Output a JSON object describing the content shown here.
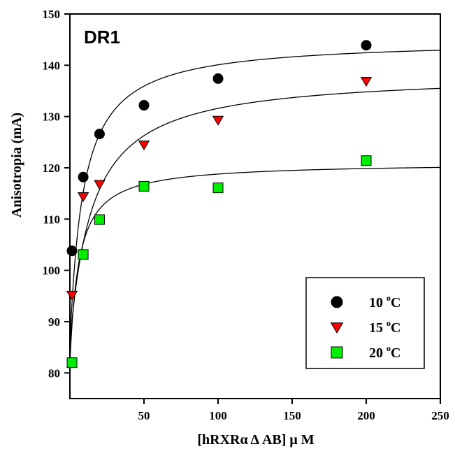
{
  "chart_data": {
    "type": "scatter",
    "panel_label": "DR1",
    "xlabel": "[hRXRα Δ AB] μ M",
    "ylabel": "Anisotropia (mA)",
    "xlim": [
      0,
      250
    ],
    "ylim": [
      75,
      150
    ],
    "x_ticks": [
      50,
      100,
      150,
      200,
      250
    ],
    "y_ticks": [
      80,
      90,
      100,
      110,
      120,
      130,
      140,
      150
    ],
    "legend_position": "bottom-right",
    "grid": false,
    "series": [
      {
        "name": "10 ºC",
        "name_base": "10 ",
        "name_sup": "o",
        "name_unit": "C",
        "marker": "circle",
        "color": "#000000",
        "x": [
          0,
          9,
          20,
          50,
          100,
          200
        ],
        "y": [
          103.8,
          118.2,
          126.6,
          132.2,
          137.4,
          143.9
        ],
        "fit": {
          "y0": 85.5,
          "plateau": 145.0,
          "k": 9.0
        }
      },
      {
        "name": "15 ºC",
        "name_base": "15 ",
        "name_sup": "o",
        "name_unit": "C",
        "marker": "triangle-down",
        "color": "#ff0000",
        "x": [
          0,
          9,
          20,
          50,
          100,
          200
        ],
        "y": [
          95.2,
          114.4,
          116.8,
          124.5,
          129.3,
          136.9
        ],
        "fit": {
          "y0": 85.5,
          "plateau": 138.5,
          "k": 15.0
        }
      },
      {
        "name": "20 ºC",
        "name_base": "20 ",
        "name_sup": "o",
        "name_unit": "C",
        "marker": "square",
        "color": "#00ee00",
        "x": [
          0,
          9,
          20,
          50,
          100,
          200
        ],
        "y": [
          82.0,
          103.1,
          109.9,
          116.4,
          116.1,
          121.4
        ],
        "fit": {
          "y0": 81.8,
          "plateau": 121.0,
          "k": 6.0
        }
      }
    ]
  }
}
